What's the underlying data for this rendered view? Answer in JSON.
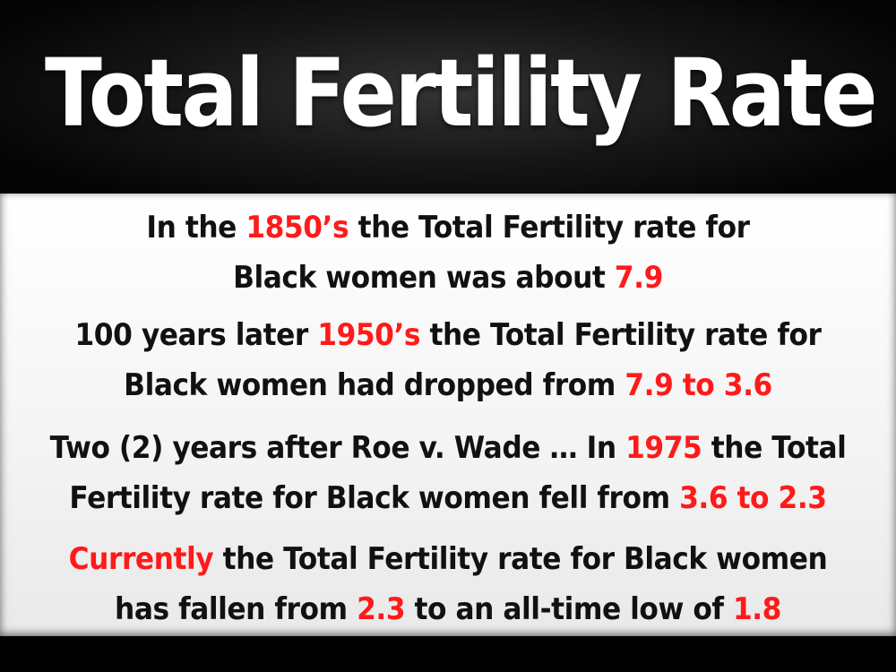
{
  "slide": {
    "title": "Total Fertility Rate",
    "colors": {
      "highlight": "#ff1a1a",
      "body_text": "#111111",
      "title_text": "#ffffff",
      "panel": "#f3f3f3",
      "header": "#1a1a1a"
    },
    "paragraphs": [
      {
        "line1": {
          "a": "In the ",
          "h1": "1850’s",
          "b": " the Total Fertility rate for"
        },
        "line2": {
          "a": "Black women was about ",
          "h1": "7.9"
        }
      },
      {
        "line1": {
          "a": "100 years later ",
          "h1": "1950’s",
          "b": " the Total Fertility rate for"
        },
        "line2": {
          "a": "Black women had dropped from ",
          "h1": "7.9 to 3.6"
        }
      },
      {
        "line1": {
          "a": "Two (2) years after Roe v. Wade … In ",
          "h1": "1975",
          "b": " the Total"
        },
        "line2": {
          "a": "Fertility rate for Black women fell from ",
          "h1": "3.6 to 2.3"
        }
      },
      {
        "line1": {
          "h1": "Currently",
          "b": " the Total Fertility rate for Black women"
        },
        "line2": {
          "a": "has fallen from ",
          "h1": "2.3",
          "b": " to an all-time low of ",
          "h2": "1.8"
        }
      }
    ]
  }
}
